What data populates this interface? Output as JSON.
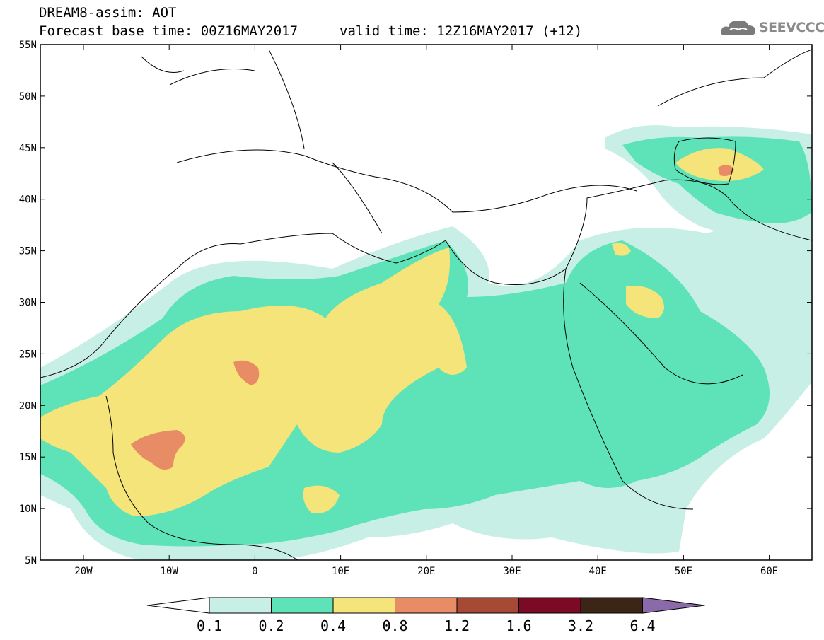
{
  "header": {
    "model_line": "DREAM8-assim: AOT",
    "base_time_line": "Forecast base time: 00Z16MAY2017",
    "valid_time_line": "valid time: 12Z16MAY2017 (+12)"
  },
  "logo": {
    "text": "SEEVCCC",
    "icon": "cloud-icon"
  },
  "axes": {
    "lat_labels": [
      "55N",
      "50N",
      "45N",
      "40N",
      "35N",
      "30N",
      "25N",
      "20N",
      "15N",
      "10N",
      "5N"
    ],
    "lon_labels": [
      "20W",
      "10W",
      "0",
      "10E",
      "20E",
      "30E",
      "40E",
      "50E",
      "60E"
    ]
  },
  "colorbar": {
    "labels": [
      "0.1",
      "0.2",
      "0.4",
      "0.8",
      "1.2",
      "1.6",
      "3.2",
      "6.4"
    ],
    "colors": [
      "#ffffff",
      "#c8efe6",
      "#5ee3b9",
      "#f5e479",
      "#e88c66",
      "#a74a35",
      "#7a0a25",
      "#3a2517",
      "#8b6aa9"
    ]
  }
}
